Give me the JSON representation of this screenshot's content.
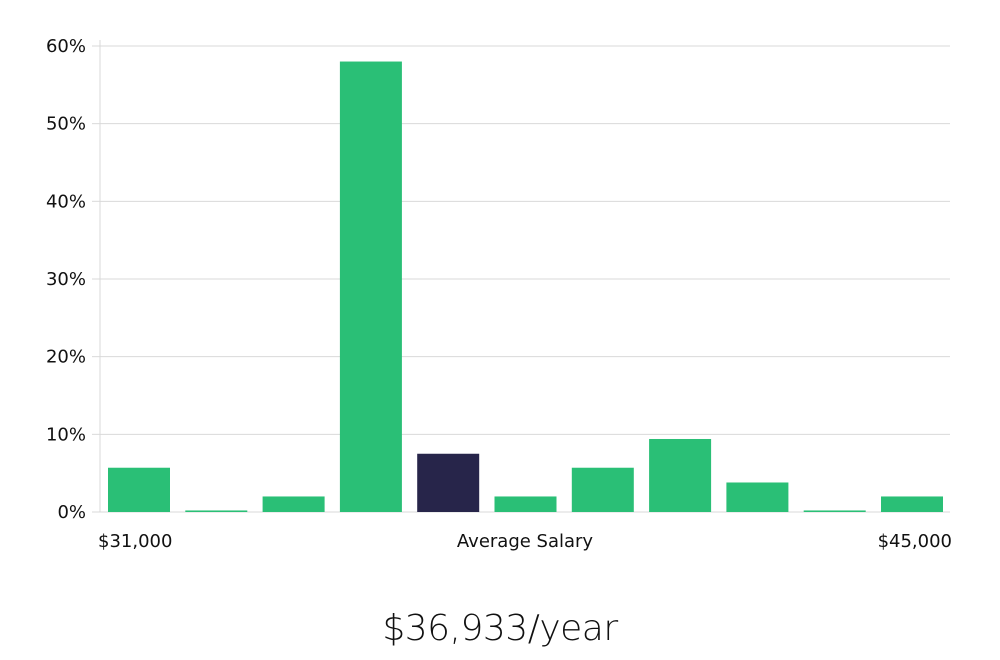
{
  "chart_data": {
    "type": "bar",
    "title": "",
    "xlabel": "Average Salary",
    "ylabel": "",
    "x_start_label": "$31,000",
    "x_end_label": "$45,000",
    "ylim": [
      0,
      60
    ],
    "yticks": [
      0,
      10,
      20,
      30,
      40,
      50,
      60
    ],
    "ytick_labels": [
      "0%",
      "10%",
      "20%",
      "30%",
      "40%",
      "50%",
      "60%"
    ],
    "grid": true,
    "values": [
      5.7,
      0.2,
      2.0,
      58.0,
      7.5,
      2.0,
      5.7,
      9.4,
      3.8,
      0.2,
      2.0
    ],
    "highlight_index": 4,
    "bar_color": "#2abf76",
    "highlight_color": "#27254a",
    "grid_color": "#d9d9d9"
  },
  "average": {
    "value_label": "$36,933/year"
  }
}
